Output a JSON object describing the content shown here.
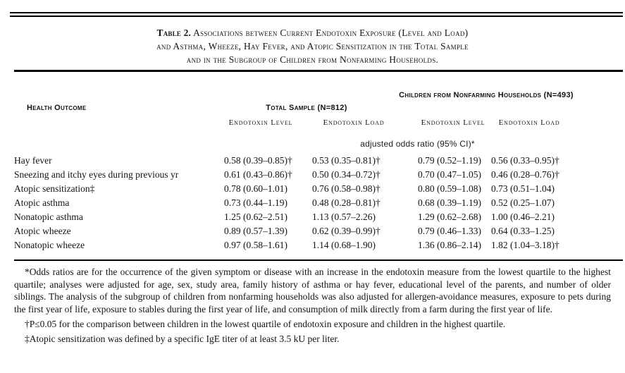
{
  "colors": {
    "background": "#ffffff",
    "text": "#141414",
    "rule": "#000000"
  },
  "title": {
    "prefix": "Table 2.",
    "lines": [
      "Associations between Current Endotoxin Exposure (Level and Load)",
      "and Asthma, Wheeze, Hay Fever, and Atopic Sensitization in the Total Sample",
      "and in the Subgroup of Children from Nonfarming Households."
    ]
  },
  "header": {
    "outcome_label": "Health Outcome",
    "group_total": {
      "label": "Total Sample (N=812)",
      "subcolumns": [
        "Endotoxin Level",
        "Endotoxin Load"
      ]
    },
    "group_nonfarming": {
      "label": "Children from Nonfarming Households (N=493)",
      "subcolumns": [
        "Endotoxin Level",
        "Endotoxin Load"
      ]
    },
    "spanner_note": "adjusted odds ratio (95% CI)*"
  },
  "rows": [
    {
      "outcome": "Hay fever",
      "total_level": "0.58 (0.39–0.85)†",
      "total_load": "0.53 (0.35–0.81)†",
      "nonfarming_level": "0.79 (0.52–1.19)",
      "nonfarming_load": "0.56 (0.33–0.95)†"
    },
    {
      "outcome": "Sneezing and itchy eyes during previous yr",
      "total_level": "0.61 (0.43–0.86)†",
      "total_load": "0.50 (0.34–0.72)†",
      "nonfarming_level": "0.70 (0.47–1.05)",
      "nonfarming_load": "0.46 (0.28–0.76)†"
    },
    {
      "outcome": "Atopic sensitization‡",
      "total_level": "0.78 (0.60–1.01)",
      "total_load": "0.76 (0.58–0.98)†",
      "nonfarming_level": "0.80 (0.59–1.08)",
      "nonfarming_load": "0.73 (0.51–1.04)"
    },
    {
      "outcome": "Atopic asthma",
      "total_level": "0.73 (0.44–1.19)",
      "total_load": "0.48 (0.28–0.81)†",
      "nonfarming_level": "0.68 (0.39–1.19)",
      "nonfarming_load": "0.52 (0.25–1.07)"
    },
    {
      "outcome": "Nonatopic asthma",
      "total_level": "1.25 (0.62–2.51)",
      "total_load": "1.13 (0.57–2.26)",
      "nonfarming_level": "1.29 (0.62–2.68)",
      "nonfarming_load": "1.00 (0.46–2.21)"
    },
    {
      "outcome": "Atopic wheeze",
      "total_level": "0.89 (0.57–1.39)",
      "total_load": "0.62 (0.39–0.99)†",
      "nonfarming_level": "0.79 (0.46–1.33)",
      "nonfarming_load": "0.64 (0.33–1.25)"
    },
    {
      "outcome": "Nonatopic wheeze",
      "total_level": "0.97 (0.58–1.61)",
      "total_load": "1.14 (0.68–1.90)",
      "nonfarming_level": "1.36 (0.86–2.14)",
      "nonfarming_load": "1.82 (1.04–3.18)†"
    }
  ],
  "footnotes": [
    "*Odds ratios are for the occurrence of the given symptom or disease with an increase in the endotoxin measure from the lowest quartile to the highest quartile; analyses were adjusted for age, sex, study area, family history of asthma or hay fever, educational level of the parents, and number of older siblings. The analysis of the subgroup of children from nonfarming households was also adjusted for allergen-avoidance measures, exposure to pets during the first year of life, exposure to stables during the first year of life, and consumption of milk directly from a farm during the first year of life.",
    "†P≤0.05 for the comparison between children in the lowest quartile of endotoxin exposure and children in the highest quartile.",
    "‡Atopic sensitization was defined by a specific IgE titer of at least 3.5 kU per liter."
  ]
}
